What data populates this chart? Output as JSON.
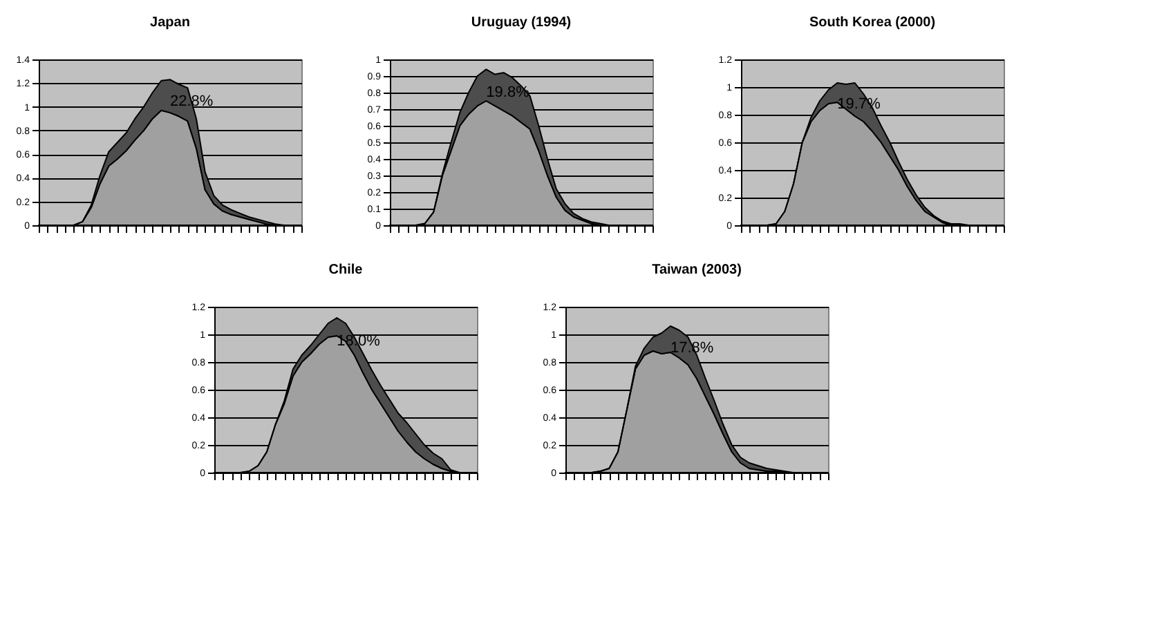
{
  "chart_data": [
    {
      "type": "area",
      "title": "Japan",
      "stacked": true,
      "grid": "y",
      "tick_labels": "y",
      "ylim": [
        0,
        1.4
      ],
      "yticks": [
        0,
        0.2,
        0.4,
        0.6,
        0.8,
        1,
        1.2,
        1.4
      ],
      "annotations": [
        "22.8%"
      ],
      "categories": [
        null,
        null,
        null,
        null,
        null,
        null,
        null,
        null,
        null,
        null,
        null,
        null,
        null,
        null,
        null,
        null,
        null,
        null,
        null,
        null,
        null,
        null,
        null,
        null,
        null,
        null,
        null,
        null,
        null,
        null,
        null
      ],
      "series": [
        {
          "color": "#a0a0a0",
          "values": [
            0,
            0,
            0,
            0,
            0,
            0.03,
            0.15,
            0.35,
            0.5,
            0.56,
            0.63,
            0.72,
            0.8,
            0.9,
            0.97,
            0.95,
            0.92,
            0.88,
            0.65,
            0.3,
            0.18,
            0.12,
            0.09,
            0.07,
            0.05,
            0.03,
            0.01,
            0,
            0,
            0,
            0
          ]
        },
        {
          "color": "#4d4d4d",
          "values": [
            0,
            0,
            0,
            0,
            0,
            0,
            0.02,
            0.07,
            0.12,
            0.14,
            0.15,
            0.18,
            0.2,
            0.22,
            0.25,
            0.28,
            0.27,
            0.28,
            0.25,
            0.15,
            0.07,
            0.05,
            0.04,
            0.03,
            0.02,
            0.02,
            0.02,
            0.01,
            0,
            0,
            0
          ]
        }
      ]
    },
    {
      "type": "area",
      "title": "Uruguay (1994)",
      "stacked": true,
      "grid": "y",
      "tick_labels": "y",
      "ylim": [
        0,
        1
      ],
      "yticks": [
        0,
        0.1,
        0.2,
        0.3,
        0.4,
        0.5,
        0.6,
        0.7,
        0.8,
        0.9,
        1
      ],
      "annotations": [
        "19.8%"
      ],
      "categories": [
        null,
        null,
        null,
        null,
        null,
        null,
        null,
        null,
        null,
        null,
        null,
        null,
        null,
        null,
        null,
        null,
        null,
        null,
        null,
        null,
        null,
        null,
        null,
        null,
        null,
        null,
        null,
        null,
        null,
        null,
        null
      ],
      "series": [
        {
          "color": "#a0a0a0",
          "values": [
            0,
            0,
            0,
            0,
            0.01,
            0.08,
            0.3,
            0.45,
            0.6,
            0.67,
            0.72,
            0.75,
            0.72,
            0.69,
            0.66,
            0.62,
            0.58,
            0.45,
            0.3,
            0.17,
            0.09,
            0.05,
            0.03,
            0.01,
            0,
            0,
            0,
            0,
            0,
            0,
            0
          ]
        },
        {
          "color": "#4d4d4d",
          "values": [
            0,
            0,
            0,
            0,
            0,
            0,
            0.01,
            0.05,
            0.08,
            0.13,
            0.18,
            0.19,
            0.19,
            0.23,
            0.23,
            0.22,
            0.2,
            0.15,
            0.1,
            0.05,
            0.04,
            0.02,
            0.01,
            0.01,
            0.01,
            0,
            0,
            0,
            0,
            0,
            0
          ]
        }
      ]
    },
    {
      "type": "area",
      "title": "South Korea (2000)",
      "stacked": true,
      "grid": "y",
      "tick_labels": "y",
      "ylim": [
        0,
        1.2
      ],
      "yticks": [
        0,
        0.2,
        0.4,
        0.6,
        0.8,
        1,
        1.2
      ],
      "annotations": [
        "19.7%"
      ],
      "categories": [
        null,
        null,
        null,
        null,
        null,
        null,
        null,
        null,
        null,
        null,
        null,
        null,
        null,
        null,
        null,
        null,
        null,
        null,
        null,
        null,
        null,
        null,
        null,
        null,
        null,
        null,
        null,
        null,
        null,
        null,
        null
      ],
      "series": [
        {
          "color": "#a0a0a0",
          "values": [
            0,
            0,
            0,
            0,
            0.01,
            0.1,
            0.3,
            0.6,
            0.75,
            0.83,
            0.88,
            0.89,
            0.84,
            0.79,
            0.75,
            0.68,
            0.6,
            0.5,
            0.4,
            0.28,
            0.18,
            0.1,
            0.06,
            0.02,
            0,
            0,
            0,
            0,
            0,
            0,
            0
          ]
        },
        {
          "color": "#4d4d4d",
          "values": [
            0,
            0,
            0,
            0,
            0,
            0,
            0,
            0,
            0.03,
            0.07,
            0.1,
            0.14,
            0.18,
            0.24,
            0.2,
            0.17,
            0.12,
            0.1,
            0.06,
            0.05,
            0.04,
            0.03,
            0.01,
            0.01,
            0.01,
            0.01,
            0,
            0,
            0,
            0,
            0
          ]
        }
      ]
    },
    {
      "type": "area",
      "title": "Chile",
      "stacked": true,
      "grid": "y",
      "tick_labels": "y",
      "ylim": [
        0,
        1.2
      ],
      "yticks": [
        0,
        0.2,
        0.4,
        0.6,
        0.8,
        1,
        1.2
      ],
      "annotations": [
        "18.0%"
      ],
      "categories": [
        null,
        null,
        null,
        null,
        null,
        null,
        null,
        null,
        null,
        null,
        null,
        null,
        null,
        null,
        null,
        null,
        null,
        null,
        null,
        null,
        null,
        null,
        null,
        null,
        null,
        null,
        null,
        null,
        null,
        null,
        null
      ],
      "series": [
        {
          "color": "#a0a0a0",
          "values": [
            0,
            0,
            0,
            0,
            0.01,
            0.05,
            0.15,
            0.35,
            0.5,
            0.7,
            0.8,
            0.86,
            0.93,
            0.98,
            0.99,
            0.95,
            0.85,
            0.72,
            0.6,
            0.5,
            0.4,
            0.3,
            0.22,
            0.15,
            0.1,
            0.06,
            0.03,
            0.01,
            0,
            0,
            0
          ]
        },
        {
          "color": "#4d4d4d",
          "values": [
            0,
            0,
            0,
            0,
            0,
            0,
            0,
            0,
            0.02,
            0.05,
            0.05,
            0.06,
            0.07,
            0.1,
            0.13,
            0.13,
            0.13,
            0.14,
            0.14,
            0.13,
            0.13,
            0.13,
            0.14,
            0.13,
            0.1,
            0.08,
            0.07,
            0.01,
            0,
            0,
            0
          ]
        }
      ]
    },
    {
      "type": "area",
      "title": "Taiwan (2003)",
      "stacked": true,
      "grid": "y",
      "tick_labels": "y",
      "ylim": [
        0,
        1.2
      ],
      "yticks": [
        0,
        0.2,
        0.4,
        0.6,
        0.8,
        1,
        1.2
      ],
      "annotations": [
        "17.8%"
      ],
      "categories": [
        null,
        null,
        null,
        null,
        null,
        null,
        null,
        null,
        null,
        null,
        null,
        null,
        null,
        null,
        null,
        null,
        null,
        null,
        null,
        null,
        null,
        null,
        null,
        null,
        null,
        null,
        null,
        null,
        null,
        null,
        null
      ],
      "series": [
        {
          "color": "#a0a0a0",
          "values": [
            0,
            0,
            0,
            0,
            0.01,
            0.03,
            0.15,
            0.45,
            0.75,
            0.85,
            0.88,
            0.86,
            0.87,
            0.83,
            0.78,
            0.68,
            0.55,
            0.42,
            0.28,
            0.15,
            0.07,
            0.03,
            0.02,
            0.01,
            0.01,
            0,
            0,
            0,
            0,
            0,
            0
          ]
        },
        {
          "color": "#4d4d4d",
          "values": [
            0,
            0,
            0,
            0,
            0,
            0,
            0,
            0,
            0.02,
            0.05,
            0.1,
            0.15,
            0.19,
            0.2,
            0.2,
            0.17,
            0.13,
            0.1,
            0.07,
            0.05,
            0.04,
            0.04,
            0.03,
            0.02,
            0.01,
            0.01,
            0,
            0,
            0,
            0,
            0
          ]
        }
      ]
    }
  ]
}
